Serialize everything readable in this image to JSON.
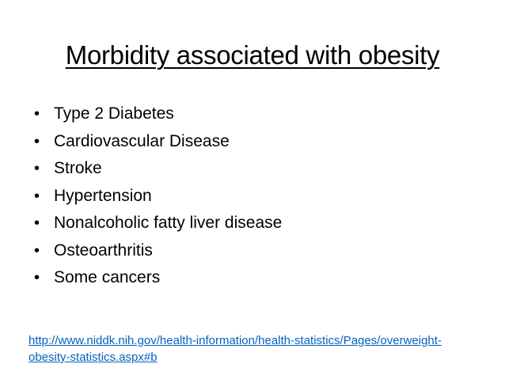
{
  "slide": {
    "title": "Morbidity associated with obesity",
    "bullet_symbol": "•",
    "bullets": [
      "Type 2 Diabetes",
      "Cardiovascular Disease",
      "Stroke",
      "Hypertension",
      "Nonalcoholic fatty liver disease",
      "Osteoarthritis",
      "Some cancers"
    ],
    "source_link_line1": "http://www.niddk.nih.gov/health-information/health-statistics/Pages/overweight-",
    "source_link_line2": "obesity-statistics.aspx#b"
  },
  "colors": {
    "text": "#000000",
    "link": "#0563c1",
    "background": "#ffffff"
  }
}
